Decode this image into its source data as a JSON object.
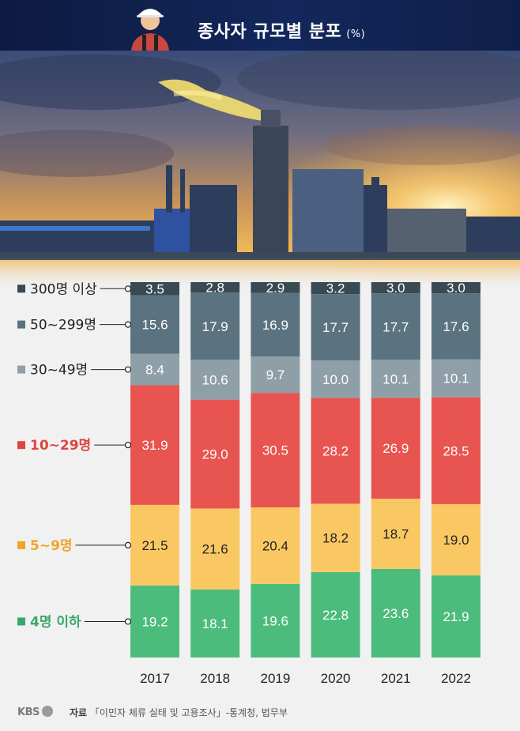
{
  "title": "종사자 규모별 분포",
  "unit": "(%)",
  "chart_data": {
    "type": "bar",
    "stacked": true,
    "categories": [
      "2017",
      "2018",
      "2019",
      "2020",
      "2021",
      "2022"
    ],
    "series": [
      {
        "name": "4명 이하",
        "color": "#4cbc7c",
        "values": [
          19.2,
          18.1,
          19.6,
          22.8,
          23.6,
          21.9
        ]
      },
      {
        "name": "5~9명",
        "color": "#fac863",
        "values": [
          21.5,
          21.6,
          20.4,
          18.2,
          18.7,
          19.0
        ]
      },
      {
        "name": "10~29명",
        "color": "#e85450",
        "values": [
          31.9,
          29.0,
          30.5,
          28.2,
          26.9,
          28.5
        ]
      },
      {
        "name": "30~49명",
        "color": "#8f9fa7",
        "values": [
          8.4,
          10.6,
          9.7,
          10.0,
          10.1,
          10.1
        ]
      },
      {
        "name": "50~299명",
        "color": "#5b7380",
        "values": [
          15.6,
          17.9,
          16.9,
          17.7,
          17.7,
          17.6
        ]
      },
      {
        "name": "300명 이상",
        "color": "#3a4a52",
        "values": [
          3.5,
          2.8,
          2.9,
          3.2,
          3.0,
          3.0
        ]
      }
    ],
    "ylim": [
      0,
      100
    ],
    "legend": "left"
  },
  "legend_colors": {
    "4명 이하": "#3aa86a",
    "5~9명": "#f0a528",
    "10~29명": "#e0443f",
    "30~49명": "#222222",
    "50~299명": "#222222",
    "300명 이상": "#222222"
  },
  "footer": {
    "logo": "KBS",
    "source_label": "자료",
    "source_text": "「이민자 체류 실태 및 고용조사」-통계청, 법무부"
  }
}
